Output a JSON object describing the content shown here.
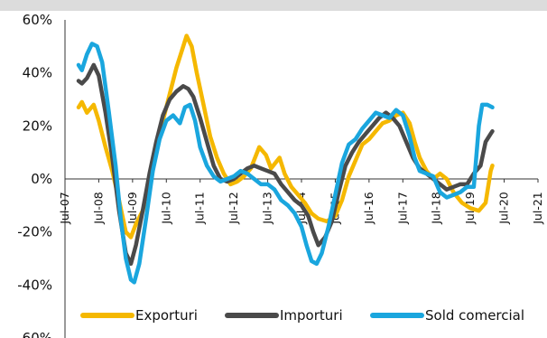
{
  "colors": {
    "exports": "#f5b800",
    "imports": "#4a4a4a",
    "balance": "#1aa6de",
    "header_band": "#dcdcdc"
  },
  "chart_data": {
    "type": "line",
    "ylim": [
      -60,
      60
    ],
    "y_ticks": [
      "60%",
      "40%",
      "20%",
      "0%",
      "-20%",
      "-40%",
      "-60%"
    ],
    "x_ticks": [
      "Jul-07",
      "Jul-08",
      "Jul-09",
      "Jul-10",
      "Jul-11",
      "Jul-12",
      "Jul-13",
      "Jul-14",
      "Jul-15",
      "Jul-16",
      "Jul-17",
      "Jul-18",
      "Jul-19",
      "Jul-20",
      "Jul-21"
    ],
    "grid": false,
    "legend_position": "bottom",
    "series": [
      {
        "name": "Exporturi",
        "color_key": "exports",
        "points": [
          [
            2007.9,
            27
          ],
          [
            2008.0,
            29
          ],
          [
            2008.15,
            25
          ],
          [
            2008.35,
            28
          ],
          [
            2008.5,
            22
          ],
          [
            2008.7,
            12
          ],
          [
            2008.9,
            3
          ],
          [
            2009.1,
            -8
          ],
          [
            2009.3,
            -20
          ],
          [
            2009.45,
            -22
          ],
          [
            2009.6,
            -17
          ],
          [
            2009.8,
            -12
          ],
          [
            2010.0,
            -3
          ],
          [
            2010.2,
            10
          ],
          [
            2010.4,
            22
          ],
          [
            2010.6,
            32
          ],
          [
            2010.8,
            42
          ],
          [
            2011.0,
            50
          ],
          [
            2011.1,
            54
          ],
          [
            2011.25,
            50
          ],
          [
            2011.4,
            40
          ],
          [
            2011.6,
            28
          ],
          [
            2011.8,
            16
          ],
          [
            2012.0,
            8
          ],
          [
            2012.2,
            2
          ],
          [
            2012.4,
            -2
          ],
          [
            2012.6,
            -1
          ],
          [
            2012.8,
            1
          ],
          [
            2013.0,
            4
          ],
          [
            2013.25,
            12
          ],
          [
            2013.45,
            9
          ],
          [
            2013.6,
            4
          ],
          [
            2013.85,
            8
          ],
          [
            2014.0,
            2
          ],
          [
            2014.2,
            -3
          ],
          [
            2014.4,
            -6
          ],
          [
            2014.6,
            -9
          ],
          [
            2014.8,
            -13
          ],
          [
            2015.0,
            -15
          ],
          [
            2015.25,
            -16
          ],
          [
            2015.5,
            -14
          ],
          [
            2015.7,
            -8
          ],
          [
            2015.9,
            1
          ],
          [
            2016.1,
            7
          ],
          [
            2016.3,
            13
          ],
          [
            2016.5,
            15
          ],
          [
            2016.7,
            18
          ],
          [
            2016.9,
            21
          ],
          [
            2017.1,
            22
          ],
          [
            2017.3,
            24
          ],
          [
            2017.5,
            25
          ],
          [
            2017.7,
            21
          ],
          [
            2017.85,
            14
          ],
          [
            2018.0,
            8
          ],
          [
            2018.2,
            3
          ],
          [
            2018.4,
            0
          ],
          [
            2018.6,
            2
          ],
          [
            2018.8,
            0
          ],
          [
            2019.0,
            -5
          ],
          [
            2019.25,
            -9
          ],
          [
            2019.5,
            -11
          ],
          [
            2019.75,
            -12
          ],
          [
            2019.95,
            -9
          ],
          [
            2020.1,
            3
          ],
          [
            2020.15,
            5
          ]
        ]
      },
      {
        "name": "Importuri",
        "color_key": "imports",
        "points": [
          [
            2007.9,
            37
          ],
          [
            2008.0,
            36
          ],
          [
            2008.15,
            38
          ],
          [
            2008.35,
            43
          ],
          [
            2008.5,
            39
          ],
          [
            2008.7,
            25
          ],
          [
            2008.9,
            8
          ],
          [
            2009.1,
            -12
          ],
          [
            2009.3,
            -28
          ],
          [
            2009.45,
            -32
          ],
          [
            2009.6,
            -25
          ],
          [
            2009.8,
            -12
          ],
          [
            2010.0,
            2
          ],
          [
            2010.2,
            14
          ],
          [
            2010.4,
            24
          ],
          [
            2010.6,
            30
          ],
          [
            2010.8,
            33
          ],
          [
            2011.0,
            35
          ],
          [
            2011.15,
            34
          ],
          [
            2011.3,
            31
          ],
          [
            2011.5,
            23
          ],
          [
            2011.7,
            14
          ],
          [
            2011.9,
            5
          ],
          [
            2012.1,
            0
          ],
          [
            2012.3,
            -1
          ],
          [
            2012.5,
            0
          ],
          [
            2012.7,
            2
          ],
          [
            2012.9,
            4
          ],
          [
            2013.1,
            5
          ],
          [
            2013.3,
            4
          ],
          [
            2013.5,
            3
          ],
          [
            2013.7,
            2
          ],
          [
            2013.9,
            -2
          ],
          [
            2014.1,
            -5
          ],
          [
            2014.3,
            -8
          ],
          [
            2014.5,
            -10
          ],
          [
            2014.7,
            -14
          ],
          [
            2014.85,
            -20
          ],
          [
            2015.0,
            -25
          ],
          [
            2015.2,
            -22
          ],
          [
            2015.4,
            -16
          ],
          [
            2015.6,
            -5
          ],
          [
            2015.8,
            5
          ],
          [
            2016.0,
            10
          ],
          [
            2016.2,
            14
          ],
          [
            2016.4,
            17
          ],
          [
            2016.6,
            20
          ],
          [
            2016.8,
            23
          ],
          [
            2017.0,
            25
          ],
          [
            2017.2,
            23
          ],
          [
            2017.4,
            20
          ],
          [
            2017.6,
            14
          ],
          [
            2017.8,
            8
          ],
          [
            2018.0,
            4
          ],
          [
            2018.2,
            2
          ],
          [
            2018.4,
            0
          ],
          [
            2018.6,
            -2
          ],
          [
            2018.8,
            -4
          ],
          [
            2019.0,
            -3
          ],
          [
            2019.2,
            -2
          ],
          [
            2019.4,
            -2
          ],
          [
            2019.6,
            2
          ],
          [
            2019.8,
            5
          ],
          [
            2019.95,
            14
          ],
          [
            2020.1,
            17
          ],
          [
            2020.15,
            18
          ]
        ]
      },
      {
        "name": "Sold comercial",
        "color_key": "balance",
        "points": [
          [
            2007.9,
            43
          ],
          [
            2008.0,
            41
          ],
          [
            2008.15,
            47
          ],
          [
            2008.3,
            51
          ],
          [
            2008.45,
            50
          ],
          [
            2008.6,
            44
          ],
          [
            2008.8,
            25
          ],
          [
            2009.0,
            5
          ],
          [
            2009.15,
            -15
          ],
          [
            2009.3,
            -30
          ],
          [
            2009.45,
            -38
          ],
          [
            2009.55,
            -39
          ],
          [
            2009.7,
            -32
          ],
          [
            2009.9,
            -15
          ],
          [
            2010.1,
            3
          ],
          [
            2010.3,
            15
          ],
          [
            2010.5,
            22
          ],
          [
            2010.7,
            24
          ],
          [
            2010.9,
            21
          ],
          [
            2011.05,
            27
          ],
          [
            2011.2,
            28
          ],
          [
            2011.35,
            22
          ],
          [
            2011.5,
            12
          ],
          [
            2011.7,
            5
          ],
          [
            2011.9,
            1
          ],
          [
            2012.1,
            -1
          ],
          [
            2012.3,
            0
          ],
          [
            2012.5,
            1
          ],
          [
            2012.7,
            3
          ],
          [
            2012.9,
            2
          ],
          [
            2013.1,
            0
          ],
          [
            2013.3,
            -2
          ],
          [
            2013.5,
            -2
          ],
          [
            2013.7,
            -4
          ],
          [
            2013.9,
            -8
          ],
          [
            2014.1,
            -10
          ],
          [
            2014.3,
            -13
          ],
          [
            2014.5,
            -18
          ],
          [
            2014.65,
            -25
          ],
          [
            2014.8,
            -31
          ],
          [
            2014.95,
            -32
          ],
          [
            2015.1,
            -28
          ],
          [
            2015.3,
            -18
          ],
          [
            2015.5,
            -6
          ],
          [
            2015.7,
            6
          ],
          [
            2015.9,
            13
          ],
          [
            2016.1,
            15
          ],
          [
            2016.3,
            19
          ],
          [
            2016.5,
            22
          ],
          [
            2016.7,
            25
          ],
          [
            2016.9,
            24
          ],
          [
            2017.1,
            23
          ],
          [
            2017.3,
            26
          ],
          [
            2017.5,
            24
          ],
          [
            2017.7,
            16
          ],
          [
            2017.85,
            8
          ],
          [
            2018.0,
            3
          ],
          [
            2018.2,
            2
          ],
          [
            2018.4,
            1
          ],
          [
            2018.6,
            -5
          ],
          [
            2018.8,
            -7
          ],
          [
            2019.0,
            -6
          ],
          [
            2019.2,
            -5
          ],
          [
            2019.4,
            -3
          ],
          [
            2019.6,
            -3
          ],
          [
            2019.75,
            20
          ],
          [
            2019.85,
            28
          ],
          [
            2020.0,
            28
          ],
          [
            2020.15,
            27
          ]
        ]
      }
    ]
  }
}
